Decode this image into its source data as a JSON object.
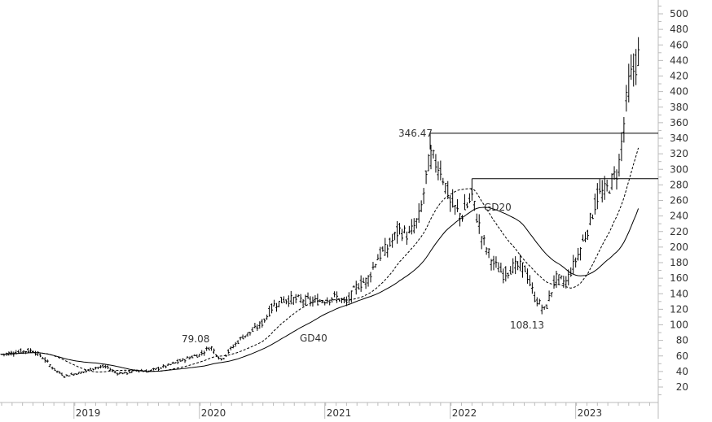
{
  "chart_data": {
    "type": "ohlc-line",
    "title": "",
    "xlabel": "",
    "ylabel": "",
    "ylim": [
      0,
      510
    ],
    "yticks": [
      20,
      40,
      60,
      80,
      100,
      120,
      140,
      160,
      180,
      200,
      220,
      240,
      260,
      280,
      300,
      320,
      340,
      360,
      380,
      400,
      420,
      440,
      460,
      480,
      500
    ],
    "xticks": [
      "2019",
      "2020",
      "2021",
      "2022",
      "2023"
    ],
    "grid": false,
    "x_start": "2018-06",
    "monthly_close": [
      [
        "2018-06",
        62
      ],
      [
        "2018-07",
        64
      ],
      [
        "2018-08",
        66
      ],
      [
        "2018-09",
        67
      ],
      [
        "2018-10",
        57
      ],
      [
        "2018-11",
        43
      ],
      [
        "2018-12",
        34
      ],
      [
        "2019-01",
        37
      ],
      [
        "2019-02",
        40
      ],
      [
        "2019-03",
        45
      ],
      [
        "2019-04",
        46
      ],
      [
        "2019-05",
        38
      ],
      [
        "2019-06",
        38
      ],
      [
        "2019-07",
        42
      ],
      [
        "2019-08",
        40
      ],
      [
        "2019-09",
        44
      ],
      [
        "2019-10",
        48
      ],
      [
        "2019-11",
        53
      ],
      [
        "2019-12",
        58
      ],
      [
        "2020-01",
        62
      ],
      [
        "2020-02",
        72
      ],
      [
        "2020-03",
        55
      ],
      [
        "2020-04",
        70
      ],
      [
        "2020-05",
        84
      ],
      [
        "2020-06",
        92
      ],
      [
        "2020-07",
        103
      ],
      [
        "2020-08",
        125
      ],
      [
        "2020-09",
        132
      ],
      [
        "2020-10",
        133
      ],
      [
        "2020-11",
        132
      ],
      [
        "2020-12",
        130
      ],
      [
        "2021-01",
        132
      ],
      [
        "2021-02",
        136
      ],
      [
        "2021-03",
        128
      ],
      [
        "2021-04",
        150
      ],
      [
        "2021-05",
        158
      ],
      [
        "2021-06",
        187
      ],
      [
        "2021-07",
        200
      ],
      [
        "2021-08",
        222
      ],
      [
        "2021-09",
        215
      ],
      [
        "2021-10",
        240
      ],
      [
        "2021-11",
        318
      ],
      [
        "2021-12",
        300
      ],
      [
        "2022-01",
        255
      ],
      [
        "2022-02",
        240
      ],
      [
        "2022-03",
        265
      ],
      [
        "2022-04",
        210
      ],
      [
        "2022-05",
        180
      ],
      [
        "2022-06",
        165
      ],
      [
        "2022-07",
        175
      ],
      [
        "2022-08",
        175
      ],
      [
        "2022-09",
        135
      ],
      [
        "2022-10",
        118
      ],
      [
        "2022-11",
        160
      ],
      [
        "2022-12",
        155
      ],
      [
        "2023-01",
        185
      ],
      [
        "2023-02",
        220
      ],
      [
        "2023-03",
        265
      ],
      [
        "2023-04",
        275
      ],
      [
        "2023-05",
        300
      ],
      [
        "2023-06",
        410
      ],
      [
        "2023-07",
        448
      ]
    ],
    "moving_averages": [
      {
        "name": "GD20",
        "period_weeks": 20,
        "style": "dashed"
      },
      {
        "name": "GD40",
        "period_weeks": 40,
        "style": "solid"
      }
    ],
    "annotations": [
      {
        "text": "346.47",
        "date": "2021-11",
        "value": 346.47,
        "type": "high"
      },
      {
        "text": "108.13",
        "date": "2022-10",
        "value": 108.13,
        "type": "low"
      },
      {
        "text": "79.08",
        "date": "2020-02",
        "value": 79.08,
        "type": "high"
      }
    ],
    "horizontal_lines": [
      {
        "value": 346.47,
        "from": "2021-11"
      },
      {
        "value": 288,
        "from": "2022-03"
      }
    ],
    "colors": {
      "bars": "#000000",
      "ma": "#000000",
      "axis": "#bbbbbb",
      "text": "#333333"
    }
  }
}
